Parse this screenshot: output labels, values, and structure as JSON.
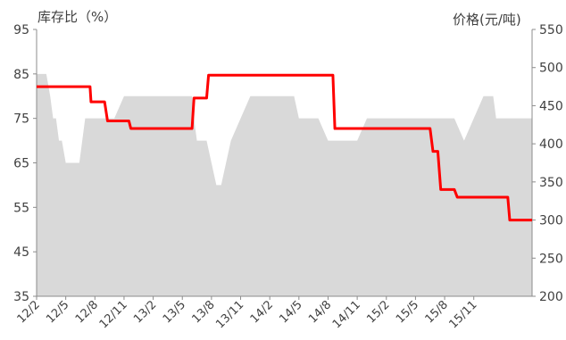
{
  "chart_data": {
    "type": "area+line",
    "title": "",
    "ylabel_left": "库存比（%）",
    "ylabel_right": "价格(元/吨)",
    "y_left": {
      "min": 35,
      "max": 95,
      "ticks": [
        35,
        45,
        55,
        65,
        75,
        85,
        95
      ]
    },
    "y_right": {
      "min": 200,
      "max": 550,
      "ticks": [
        200,
        250,
        300,
        350,
        400,
        450,
        500,
        550
      ]
    },
    "x_labels": [
      "12/2",
      "12/5",
      "12/8",
      "12/11",
      "13/2",
      "13/5",
      "13/8",
      "13/11",
      "14/2",
      "14/5",
      "14/8",
      "14/11",
      "15/2",
      "15/5",
      "15/8",
      "15/11"
    ],
    "series": [
      {
        "name": "",
        "axis": "left",
        "kind": "area",
        "color": "#d9d9d9",
        "x": [
          0,
          1,
          1.4,
          1.7,
          2,
          2.3,
          2.6,
          3,
          3.4,
          3.9,
          4.4,
          5,
          6,
          7,
          8,
          9,
          10,
          11,
          12,
          13,
          14,
          15,
          15.3,
          15.7,
          16,
          16.2,
          16.5,
          17,
          17.5,
          18,
          18.5,
          19,
          20,
          21,
          22,
          23,
          24,
          25,
          26,
          26.5,
          27,
          27.5,
          28,
          28.5,
          29,
          30,
          31,
          32,
          33,
          34,
          35,
          36,
          37,
          38,
          39,
          40,
          41,
          42,
          43,
          44,
          45,
          46,
          47,
          47.3,
          48,
          49,
          50,
          51,
          52,
          53,
          54,
          55
        ],
        "values": [
          85,
          85,
          80,
          75,
          75,
          70,
          70,
          65,
          65,
          65,
          65,
          75,
          75,
          75,
          75,
          80,
          80,
          80,
          80,
          80,
          80,
          80,
          80,
          80,
          80,
          75,
          70,
          70,
          70,
          65,
          60,
          60,
          70,
          75,
          80,
          80,
          80,
          80,
          80,
          80,
          75,
          75,
          75,
          75,
          75,
          70,
          70,
          70,
          70,
          75,
          75,
          75,
          75,
          75,
          75,
          75,
          75,
          75,
          75,
          70,
          75,
          80,
          80,
          75,
          75,
          75,
          75,
          75,
          75,
          80,
          80,
          80
        ]
      },
      {
        "name": "",
        "axis": "right",
        "kind": "step-line",
        "color": "#ff0000",
        "x": [
          0,
          5.5,
          5.6,
          7,
          7.3,
          9.5,
          9.7,
          16,
          16.2,
          17.5,
          17.7,
          30.5,
          30.7,
          40.5,
          40.8,
          41.3,
          41.6,
          43,
          43.3,
          48.5,
          48.7,
          51
        ],
        "values": [
          475,
          475,
          455,
          455,
          430,
          430,
          420,
          420,
          460,
          460,
          490,
          490,
          420,
          420,
          390,
          390,
          340,
          340,
          330,
          330,
          300,
          300
        ]
      }
    ],
    "grid": false,
    "legend": "none"
  }
}
